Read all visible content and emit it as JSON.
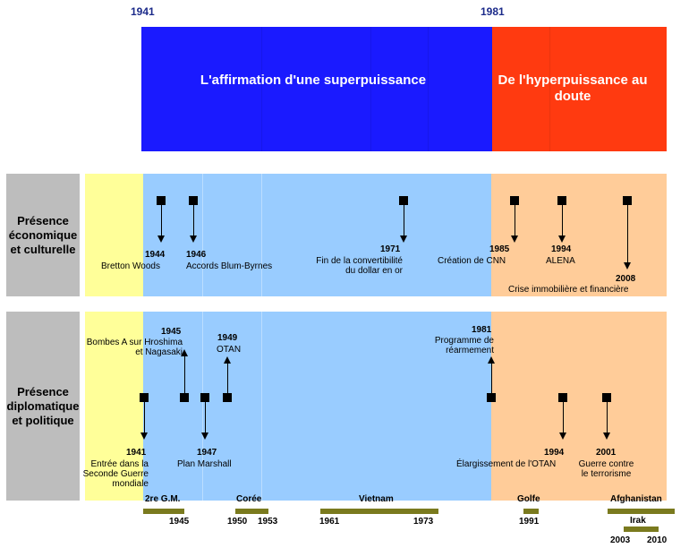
{
  "top_years": {
    "start": "1941",
    "end": "1981"
  },
  "periods": {
    "first": "L'affirmation d'une superpuissance",
    "second": "De l'hyperpuissance au doute"
  },
  "colors": {
    "blue_band": "#1a1aff",
    "red_band": "#ff3a10",
    "yellow_bg": "#ffff99",
    "light_blue_bg": "#99ccff",
    "peach_bg": "#ffcc99",
    "side_gray": "#bdbdbd",
    "war_bar": "#7a7a1e"
  },
  "rows": {
    "eco_label": "Présence économique et culturelle",
    "dip_label": "Présence diplomatique et politique"
  },
  "eco_events": [
    {
      "year": "1944",
      "text": "Bretton Woods"
    },
    {
      "year": "1946",
      "text": "Accords Blum-Byrnes"
    },
    {
      "year": "1971",
      "text": "Fin de la convertibilité du dollar en or"
    },
    {
      "year": "1985",
      "text": "Création de CNN"
    },
    {
      "year": "1994",
      "text": "ALENA"
    },
    {
      "year": "2008",
      "text": "Crise immobilière et financière"
    }
  ],
  "dip_events": [
    {
      "year": "1941",
      "text": "Entrée dans la Seconde Guerre mondiale"
    },
    {
      "year": "1945",
      "text": "Bombes A sur Hroshima et Nagasaki"
    },
    {
      "year": "1947",
      "text": "Plan Marshall"
    },
    {
      "year": "1949",
      "text": "OTAN"
    },
    {
      "year": "1981",
      "text": "Programme de réarmement"
    },
    {
      "year": "1994",
      "text": "Élargissement de l'OTAN"
    },
    {
      "year": "2001",
      "text": "Guerre contre le terrorisme"
    }
  ],
  "wars": [
    {
      "name": "2re G.M.",
      "years": [
        "1945"
      ]
    },
    {
      "name": "Corée",
      "years": [
        "1950",
        "1953"
      ]
    },
    {
      "name": "Vietnam",
      "years": [
        "1961",
        "1973"
      ]
    },
    {
      "name": "Golfe",
      "years": [
        "1991"
      ]
    },
    {
      "name": "Afghanistan",
      "years": []
    },
    {
      "name": "Irak",
      "years": [
        "2003",
        "2010"
      ]
    }
  ]
}
